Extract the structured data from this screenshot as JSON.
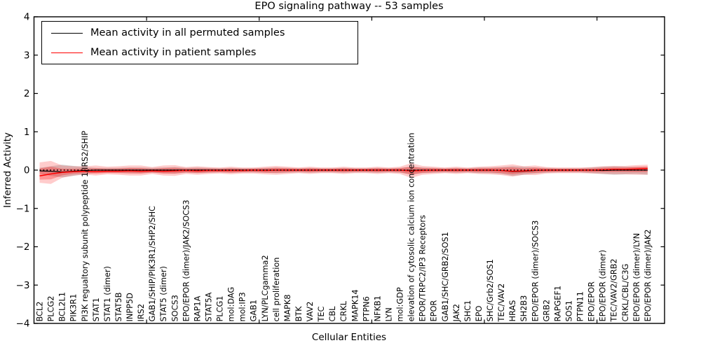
{
  "chart": {
    "title": "EPO signaling pathway -- 53 samples",
    "xlabel": "Cellular Entities",
    "ylabel": "Inferred Activity",
    "legend": {
      "permuted": "Mean activity in all permuted samples",
      "patient": "Mean activity in patient samples"
    },
    "colors": {
      "permuted": "#000000",
      "patient": "#ff0000",
      "patient_band": "#ff0000",
      "permuted_band": "#000000"
    }
  },
  "chart_data": {
    "type": "line",
    "title": "EPO signaling pathway -- 53 samples",
    "xlabel": "Cellular Entities",
    "ylabel": "Inferred Activity",
    "ylim": [
      -4,
      4
    ],
    "yticks": [
      -4,
      -3,
      -2,
      -1,
      0,
      1,
      2,
      3,
      4
    ],
    "grid": false,
    "legend_position": "upper left",
    "zero_line": true,
    "categories": [
      "BCL2",
      "PLCG2",
      "BCL2L1",
      "PIK3R1",
      "PI3K regualtory subunit polypeptide 1/IRS2/SHIP",
      "STAT1",
      "STAT1 (dimer)",
      "STAT5B",
      "INPP5D",
      "IRS2",
      "GAB1/SHIP/PIK3R1/SHP2/SHC",
      "STAT5 (dimer)",
      "SOCS3",
      "EPO/EPOR (dimer)/JAK2/SOCS3",
      "RAP1A",
      "STAT5A",
      "PLCG1",
      "mol:DAG",
      "mol:IP3",
      "GAB1",
      "LYN/PLCgamma2",
      "cell proliferation",
      "MAPK8",
      "BTK",
      "VAV2",
      "TEC",
      "CBL",
      "CRKL",
      "MAPK14",
      "PTPN6",
      "NFKB1",
      "LYN",
      "mol:GDP",
      "elevation of cytosolic calcium ion concentration",
      "EPOR/TRPC2/IP3 Receptors",
      "EPOR",
      "GAB1/SHC/GRB2/SOS1",
      "JAK2",
      "SHC1",
      "EPO",
      "SHC/Grb2/SOS1",
      "TEC/VAV2",
      "HRAS",
      "SH2B3",
      "EPO/EPOR (dimer)/SOCS3",
      "GRB2",
      "RAPGEF1",
      "SOS1",
      "PTPN11",
      "EPO/EPOR",
      "EPO/EPOR (dimer)",
      "TEC/VAV2/GRB2",
      "CRKL/CBL/C3G",
      "EPO/EPOR (dimer)/LYN",
      "EPO/EPOR (dimer)/JAK2"
    ],
    "series": [
      {
        "name": "Mean activity in all permuted samples",
        "color": "#000000",
        "values": [
          -0.02,
          -0.03,
          -0.05,
          -0.03,
          -0.01,
          0,
          0,
          0,
          0,
          0,
          0,
          0,
          0,
          0,
          0,
          0,
          0,
          0,
          0,
          0,
          0,
          0,
          0,
          0,
          0,
          0,
          0,
          0,
          0,
          0,
          0,
          0,
          0,
          -0.01,
          0,
          0,
          0,
          0,
          0,
          0,
          0,
          -0.01,
          -0.04,
          -0.03,
          -0.01,
          0,
          0,
          0,
          0,
          0,
          -0.01,
          0,
          0,
          0,
          0
        ],
        "band_hi": [
          0.06,
          0.1,
          0.14,
          0.11,
          0.08,
          0.06,
          0.06,
          0.06,
          0.07,
          0.07,
          0.06,
          0.07,
          0.08,
          0.06,
          0.07,
          0.06,
          0.05,
          0.06,
          0.05,
          0.05,
          0.06,
          0.07,
          0.06,
          0.05,
          0.06,
          0.05,
          0.05,
          0.06,
          0.05,
          0.05,
          0.06,
          0.05,
          0.06,
          0.09,
          0.07,
          0.06,
          0.05,
          0.06,
          0.05,
          0.07,
          0.07,
          0.08,
          0.1,
          0.09,
          0.07,
          0.06,
          0.05,
          0.05,
          0.05,
          0.07,
          0.09,
          0.1,
          0.09,
          0.08,
          0.08
        ],
        "band_lo": [
          -0.09,
          -0.15,
          -0.19,
          -0.15,
          -0.1,
          -0.07,
          -0.07,
          -0.07,
          -0.08,
          -0.08,
          -0.07,
          -0.08,
          -0.09,
          -0.07,
          -0.08,
          -0.07,
          -0.06,
          -0.07,
          -0.06,
          -0.06,
          -0.07,
          -0.08,
          -0.07,
          -0.06,
          -0.07,
          -0.06,
          -0.06,
          -0.07,
          -0.06,
          -0.06,
          -0.07,
          -0.06,
          -0.07,
          -0.11,
          -0.08,
          -0.07,
          -0.06,
          -0.07,
          -0.06,
          -0.08,
          -0.08,
          -0.1,
          -0.15,
          -0.12,
          -0.09,
          -0.07,
          -0.06,
          -0.06,
          -0.06,
          -0.08,
          -0.1,
          -0.12,
          -0.11,
          -0.1,
          -0.12
        ]
      },
      {
        "name": "Mean activity in patient samples",
        "color": "#ff0000",
        "values": [
          -0.15,
          -0.1,
          -0.06,
          -0.04,
          -0.03,
          -0.04,
          -0.03,
          -0.03,
          -0.02,
          -0.03,
          -0.02,
          -0.03,
          -0.02,
          -0.01,
          -0.02,
          -0.01,
          -0.01,
          -0.01,
          -0.01,
          0,
          -0.01,
          0,
          0,
          0,
          0,
          0,
          0,
          0,
          0,
          0,
          0,
          0,
          0,
          -0.02,
          -0.01,
          0,
          0,
          0,
          0,
          0,
          0,
          -0.01,
          -0.03,
          -0.02,
          0,
          0,
          0,
          0,
          0,
          0,
          0.01,
          0.02,
          0.02,
          0.03,
          0.04
        ],
        "band_hi": [
          0.2,
          0.24,
          0.12,
          0.1,
          0.1,
          0.12,
          0.09,
          0.1,
          0.12,
          0.12,
          0.08,
          0.12,
          0.13,
          0.08,
          0.1,
          0.08,
          0.07,
          0.09,
          0.07,
          0.07,
          0.09,
          0.11,
          0.09,
          0.07,
          0.09,
          0.07,
          0.07,
          0.09,
          0.07,
          0.07,
          0.09,
          0.07,
          0.09,
          0.18,
          0.11,
          0.09,
          0.07,
          0.09,
          0.07,
          0.09,
          0.1,
          0.12,
          0.15,
          0.1,
          0.12,
          0.08,
          0.07,
          0.07,
          0.07,
          0.08,
          0.1,
          0.11,
          0.11,
          0.13,
          0.14
        ],
        "band_lo": [
          -0.33,
          -0.36,
          -0.2,
          -0.14,
          -0.12,
          -0.14,
          -0.11,
          -0.12,
          -0.14,
          -0.14,
          -0.1,
          -0.14,
          -0.15,
          -0.1,
          -0.12,
          -0.1,
          -0.09,
          -0.11,
          -0.09,
          -0.09,
          -0.11,
          -0.12,
          -0.1,
          -0.08,
          -0.1,
          -0.08,
          -0.08,
          -0.1,
          -0.08,
          -0.08,
          -0.1,
          -0.08,
          -0.1,
          -0.2,
          -0.12,
          -0.1,
          -0.08,
          -0.1,
          -0.08,
          -0.1,
          -0.11,
          -0.13,
          -0.17,
          -0.12,
          -0.13,
          -0.09,
          -0.08,
          -0.08,
          -0.08,
          -0.09,
          -0.1,
          -0.11,
          -0.11,
          -0.12,
          -0.12
        ]
      }
    ]
  }
}
